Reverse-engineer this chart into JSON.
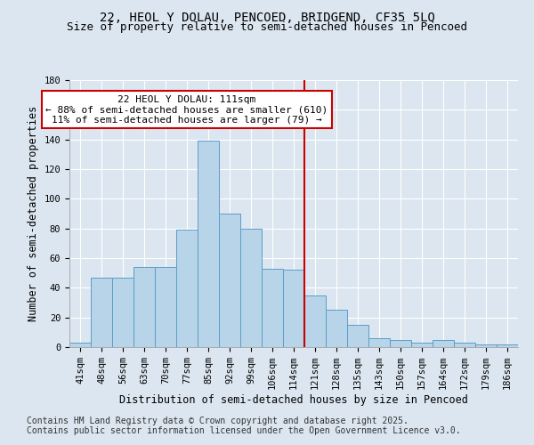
{
  "title1": "22, HEOL Y DOLAU, PENCOED, BRIDGEND, CF35 5LQ",
  "title2": "Size of property relative to semi-detached houses in Pencoed",
  "xlabel": "Distribution of semi-detached houses by size in Pencoed",
  "ylabel": "Number of semi-detached properties",
  "categories": [
    "41sqm",
    "48sqm",
    "56sqm",
    "63sqm",
    "70sqm",
    "77sqm",
    "85sqm",
    "92sqm",
    "99sqm",
    "106sqm",
    "114sqm",
    "121sqm",
    "128sqm",
    "135sqm",
    "143sqm",
    "150sqm",
    "157sqm",
    "164sqm",
    "172sqm",
    "179sqm",
    "186sqm"
  ],
  "values": [
    3,
    47,
    47,
    54,
    54,
    79,
    139,
    90,
    80,
    53,
    52,
    35,
    25,
    15,
    6,
    5,
    3,
    5,
    3,
    2,
    2
  ],
  "bar_color": "#b8d4e8",
  "bar_edge_color": "#5a9ec9",
  "vline_x": 10.5,
  "annotation_title": "22 HEOL Y DOLAU: 111sqm",
  "annotation_line1": "← 88% of semi-detached houses are smaller (610)",
  "annotation_line2": "11% of semi-detached houses are larger (79) →",
  "annotation_box_color": "#ffffff",
  "annotation_box_edge": "#cc0000",
  "vline_color": "#cc0000",
  "ylim": [
    0,
    180
  ],
  "yticks": [
    0,
    20,
    40,
    60,
    80,
    100,
    120,
    140,
    160,
    180
  ],
  "background_color": "#dce6f0",
  "footer1": "Contains HM Land Registry data © Crown copyright and database right 2025.",
  "footer2": "Contains public sector information licensed under the Open Government Licence v3.0.",
  "title_fontsize": 10,
  "subtitle_fontsize": 9,
  "axis_label_fontsize": 8.5,
  "tick_fontsize": 7.5,
  "annotation_fontsize": 8,
  "footer_fontsize": 7
}
